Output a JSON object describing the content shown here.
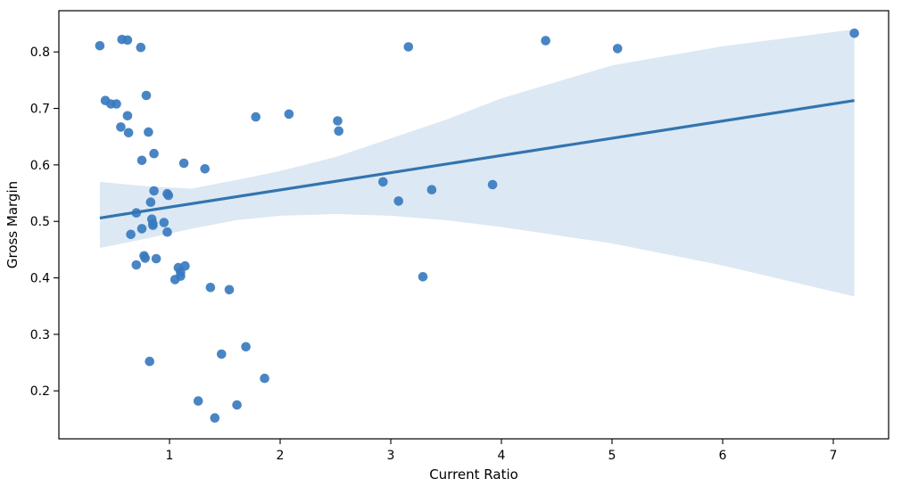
{
  "chart_data": {
    "type": "scatter",
    "title": "",
    "xlabel": "Current Ratio",
    "ylabel": "Gross Margin",
    "xlim": [
      0.0,
      7.5
    ],
    "ylim": [
      0.115,
      0.873
    ],
    "x_ticks": [
      1,
      2,
      3,
      4,
      5,
      6,
      7
    ],
    "x_tick_labels": [
      "1",
      "2",
      "3",
      "4",
      "5",
      "6",
      "7"
    ],
    "y_ticks": [
      0.2,
      0.3,
      0.4,
      0.5,
      0.6,
      0.7,
      0.8
    ],
    "y_tick_labels": [
      "0.2",
      "0.3",
      "0.4",
      "0.5",
      "0.6",
      "0.7",
      "0.8"
    ],
    "grid": false,
    "colors": {
      "points": "#3a7bbf",
      "line": "#3274b0",
      "band": "#dce8f3"
    },
    "points": [
      {
        "x": 0.37,
        "y": 0.811
      },
      {
        "x": 0.57,
        "y": 0.822
      },
      {
        "x": 0.62,
        "y": 0.821
      },
      {
        "x": 0.74,
        "y": 0.808
      },
      {
        "x": 0.42,
        "y": 0.714
      },
      {
        "x": 0.47,
        "y": 0.708
      },
      {
        "x": 0.52,
        "y": 0.708
      },
      {
        "x": 0.79,
        "y": 0.723
      },
      {
        "x": 0.62,
        "y": 0.687
      },
      {
        "x": 0.56,
        "y": 0.667
      },
      {
        "x": 0.63,
        "y": 0.657
      },
      {
        "x": 0.81,
        "y": 0.658
      },
      {
        "x": 0.86,
        "y": 0.62
      },
      {
        "x": 0.75,
        "y": 0.608
      },
      {
        "x": 1.13,
        "y": 0.603
      },
      {
        "x": 1.32,
        "y": 0.593
      },
      {
        "x": 0.86,
        "y": 0.554
      },
      {
        "x": 0.98,
        "y": 0.549
      },
      {
        "x": 0.99,
        "y": 0.546
      },
      {
        "x": 0.83,
        "y": 0.534
      },
      {
        "x": 0.7,
        "y": 0.515
      },
      {
        "x": 0.84,
        "y": 0.504
      },
      {
        "x": 0.95,
        "y": 0.498
      },
      {
        "x": 0.85,
        "y": 0.496
      },
      {
        "x": 0.85,
        "y": 0.493
      },
      {
        "x": 0.75,
        "y": 0.487
      },
      {
        "x": 0.98,
        "y": 0.481
      },
      {
        "x": 0.65,
        "y": 0.477
      },
      {
        "x": 0.77,
        "y": 0.439
      },
      {
        "x": 0.78,
        "y": 0.435
      },
      {
        "x": 0.88,
        "y": 0.434
      },
      {
        "x": 0.7,
        "y": 0.423
      },
      {
        "x": 1.14,
        "y": 0.421
      },
      {
        "x": 1.08,
        "y": 0.418
      },
      {
        "x": 1.1,
        "y": 0.41
      },
      {
        "x": 1.1,
        "y": 0.403
      },
      {
        "x": 1.05,
        "y": 0.397
      },
      {
        "x": 1.37,
        "y": 0.383
      },
      {
        "x": 1.54,
        "y": 0.379
      },
      {
        "x": 0.82,
        "y": 0.252
      },
      {
        "x": 1.69,
        "y": 0.278
      },
      {
        "x": 1.47,
        "y": 0.265
      },
      {
        "x": 1.86,
        "y": 0.222
      },
      {
        "x": 1.26,
        "y": 0.182
      },
      {
        "x": 1.61,
        "y": 0.175
      },
      {
        "x": 1.41,
        "y": 0.152
      },
      {
        "x": 1.78,
        "y": 0.685
      },
      {
        "x": 2.08,
        "y": 0.69
      },
      {
        "x": 2.52,
        "y": 0.678
      },
      {
        "x": 2.53,
        "y": 0.66
      },
      {
        "x": 2.93,
        "y": 0.57
      },
      {
        "x": 3.07,
        "y": 0.536
      },
      {
        "x": 3.37,
        "y": 0.556
      },
      {
        "x": 3.29,
        "y": 0.402
      },
      {
        "x": 3.92,
        "y": 0.565
      },
      {
        "x": 3.16,
        "y": 0.809
      },
      {
        "x": 4.4,
        "y": 0.82
      },
      {
        "x": 5.05,
        "y": 0.806
      },
      {
        "x": 7.19,
        "y": 0.833
      }
    ],
    "regression_line": [
      {
        "x": 0.37,
        "y": 0.506
      },
      {
        "x": 7.19,
        "y": 0.714
      }
    ],
    "confidence_band": [
      {
        "x": 0.37,
        "lower": 0.453,
        "upper": 0.57
      },
      {
        "x": 0.8,
        "lower": 0.47,
        "upper": 0.562
      },
      {
        "x": 1.2,
        "lower": 0.487,
        "upper": 0.558
      },
      {
        "x": 1.6,
        "lower": 0.502,
        "upper": 0.573
      },
      {
        "x": 2.0,
        "lower": 0.51,
        "upper": 0.589
      },
      {
        "x": 2.5,
        "lower": 0.513,
        "upper": 0.614
      },
      {
        "x": 3.0,
        "lower": 0.51,
        "upper": 0.647
      },
      {
        "x": 3.5,
        "lower": 0.502,
        "upper": 0.68
      },
      {
        "x": 4.0,
        "lower": 0.49,
        "upper": 0.718
      },
      {
        "x": 5.0,
        "lower": 0.461,
        "upper": 0.776
      },
      {
        "x": 6.0,
        "lower": 0.422,
        "upper": 0.81
      },
      {
        "x": 7.19,
        "lower": 0.367,
        "upper": 0.84
      }
    ]
  }
}
